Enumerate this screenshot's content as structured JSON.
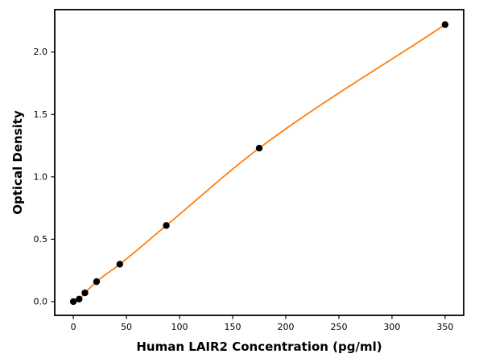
{
  "figure": {
    "background": "#ffffff"
  },
  "chart_data": {
    "type": "scatter",
    "title": "",
    "xlabel": "Human LAIR2 Concentration (pg/ml)",
    "ylabel": "Optical Density",
    "points": {
      "x": [
        0,
        5.47,
        10.94,
        21.88,
        43.75,
        87.5,
        175,
        350
      ],
      "y": [
        0.0,
        0.02,
        0.07,
        0.16,
        0.3,
        0.61,
        1.23,
        2.22
      ]
    },
    "fit_curve": true,
    "xlim": [
      -17.5,
      367.5
    ],
    "ylim": [
      -0.11,
      2.34
    ],
    "xticks": [
      0,
      50,
      100,
      150,
      200,
      250,
      300,
      350
    ],
    "xtick_labels": [
      "0",
      "50",
      "100",
      "150",
      "200",
      "250",
      "300",
      "350"
    ],
    "yticks": [
      0.0,
      0.5,
      1.0,
      1.5,
      2.0
    ],
    "ytick_labels": [
      "0.0",
      "0.5",
      "1.0",
      "1.5",
      "2.0"
    ],
    "grid": false,
    "legend": "none",
    "colors": {
      "curve": "#ff7f0e",
      "points": "#000000",
      "frame": "#000000"
    }
  }
}
